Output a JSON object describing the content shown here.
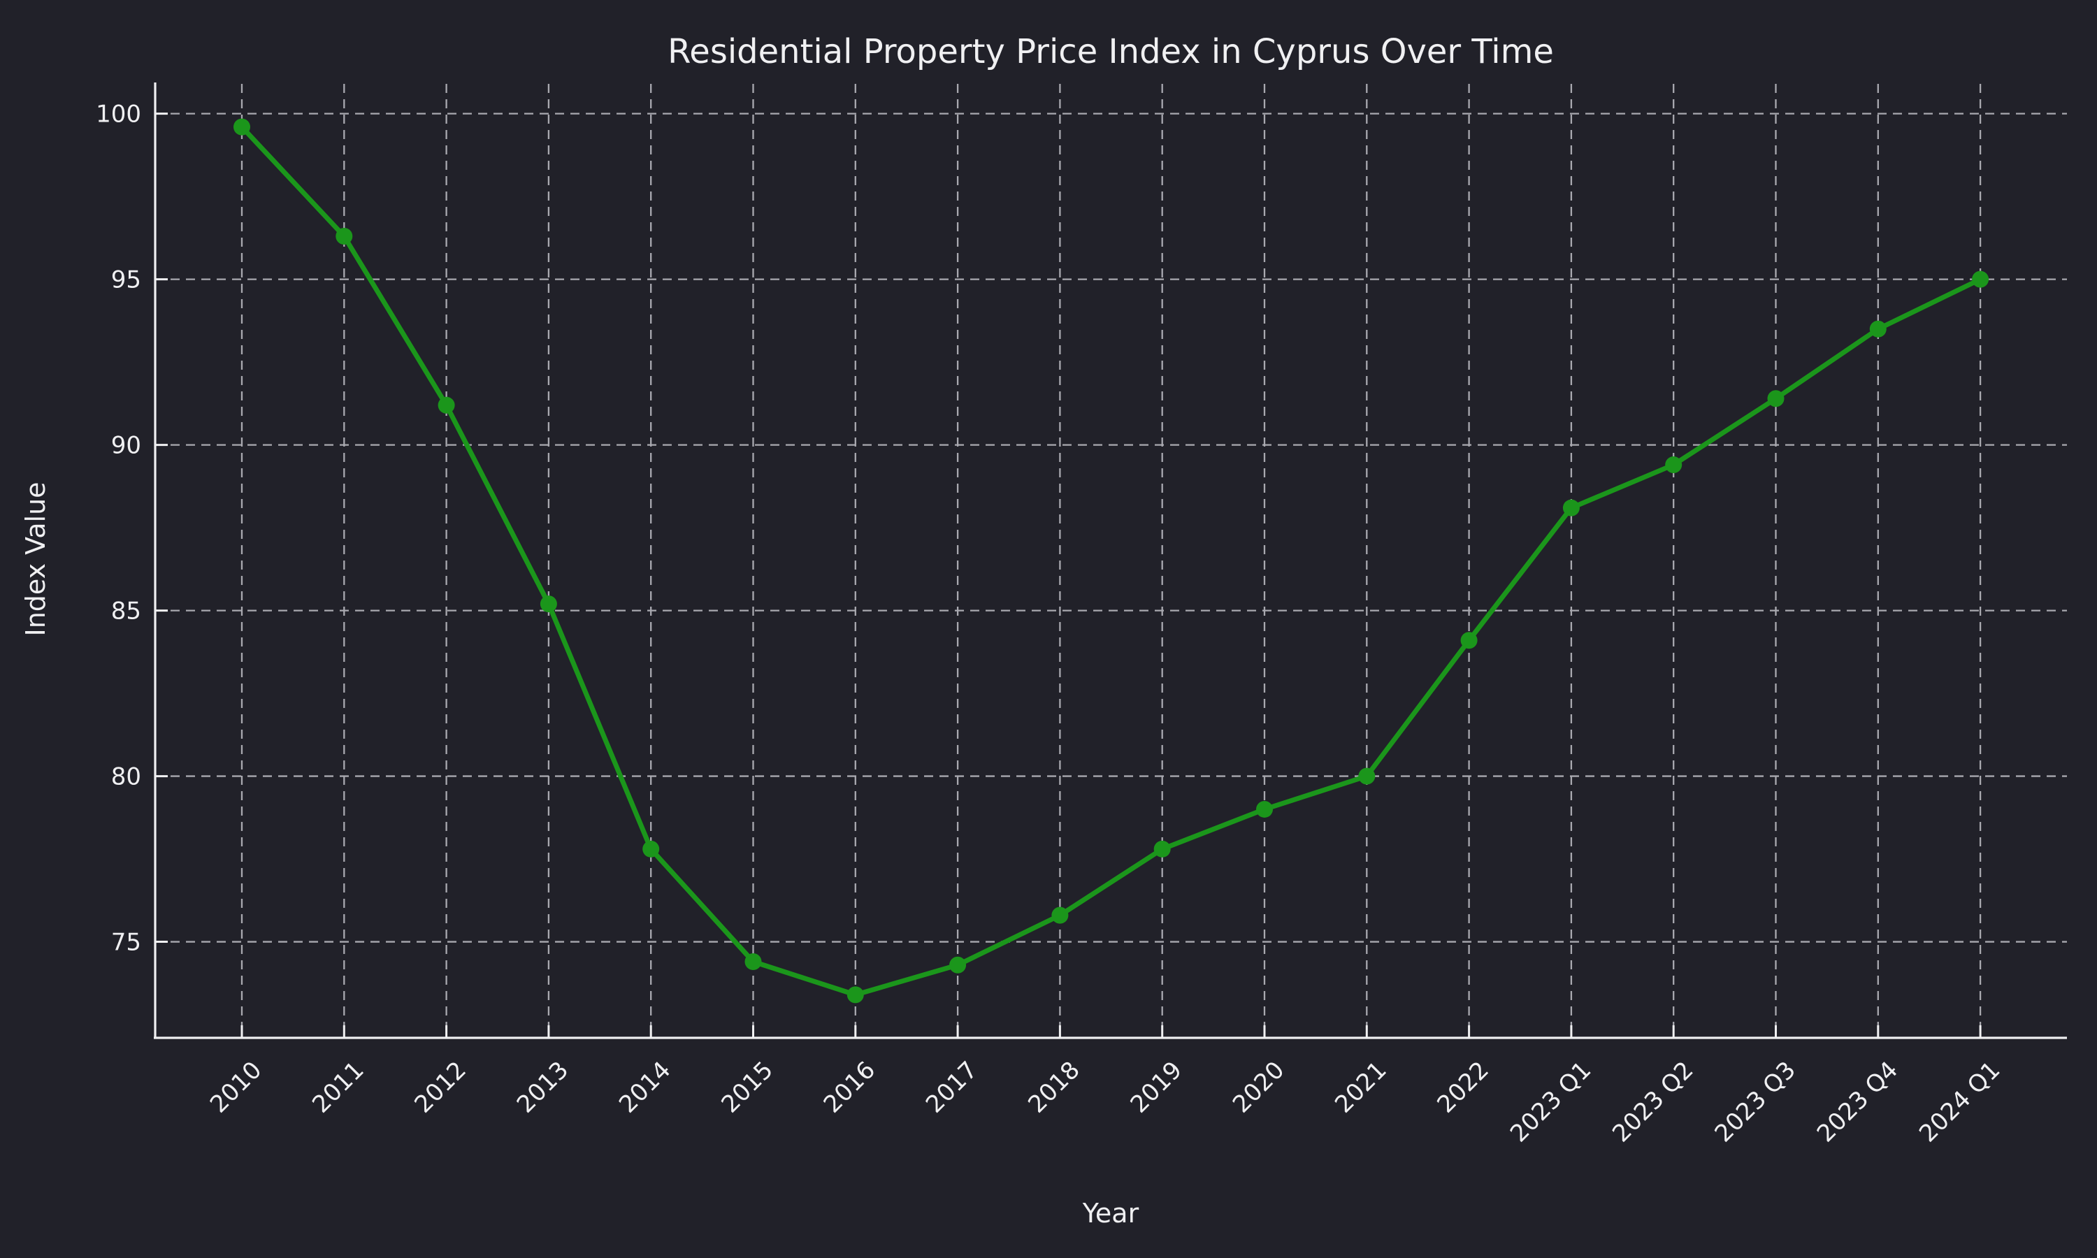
{
  "page": {
    "background_color": "#212129"
  },
  "chart_data": {
    "type": "line",
    "title": "Residential Property Price Index in Cyprus Over Time",
    "xlabel": "Year",
    "ylabel": "Index Value",
    "categories": [
      "2010",
      "2011",
      "2012",
      "2013",
      "2014",
      "2015",
      "2016",
      "2017",
      "2018",
      "2019",
      "2020",
      "2021",
      "2022",
      "2023 Q1",
      "2023 Q2",
      "2023 Q3",
      "2023 Q4",
      "2024 Q1"
    ],
    "values": [
      99.6,
      96.3,
      91.2,
      85.2,
      77.8,
      74.4,
      73.4,
      74.3,
      75.8,
      77.8,
      79.0,
      80.0,
      84.1,
      88.1,
      89.4,
      91.4,
      93.5,
      95.0
    ],
    "series_name": "Residential Property Price Index",
    "ylim": [
      72.1,
      100.9
    ],
    "yticks": [
      75,
      80,
      85,
      90,
      95,
      100
    ],
    "xtick_rotation_deg": -45,
    "grid": {
      "visible": true,
      "style": "dashed",
      "axes": "both"
    },
    "legend": "none",
    "marker": "circle",
    "colors": {
      "line": "#1b961b",
      "marker": "#1b961b",
      "background": "#212129",
      "text": "#f0f0f2",
      "grid": "#a9a9b0",
      "spine": "#f0f0f2"
    }
  }
}
